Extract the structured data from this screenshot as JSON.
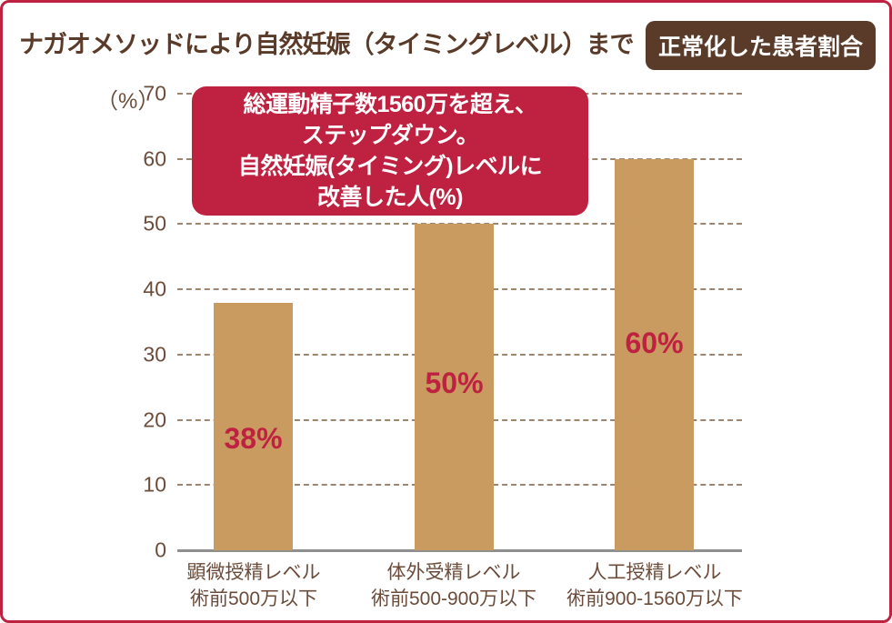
{
  "header": {
    "title": "ナガオメソッドにより自然妊娠（タイミングレベル）まで",
    "badge": "正常化した患者割合"
  },
  "annotation": {
    "lines": [
      "総運動精子数1560万を超え、",
      "ステップダウン。",
      "自然妊娠(タイミング)レベルに",
      "改善した人(%)"
    ]
  },
  "chart_data": {
    "type": "bar",
    "title": "ナガオメソッドにより自然妊娠（タイミングレベル）まで正常化した患者割合",
    "unit_label": "（%）",
    "categories": [
      [
        "顕微授精レベル",
        "術前500万以下"
      ],
      [
        "体外受精レベル",
        "術前500-900万以下"
      ],
      [
        "人工授精レベル",
        "術前900-1560万以下"
      ]
    ],
    "values": [
      38,
      50,
      60
    ],
    "value_labels": [
      "38%",
      "50%",
      "60%"
    ],
    "yticks": [
      70,
      60,
      50,
      40,
      30,
      20,
      10,
      0
    ],
    "ylim": [
      0,
      70
    ],
    "xlabel": "",
    "ylabel": "(%)",
    "grid": "horizontal-dashed",
    "legend": "none",
    "annotation": "総運動精子数1560万を超え、ステップダウン。自然妊娠(タイミング)レベルに改善した人(%)"
  },
  "colors": {
    "accent_red": "#bf2240",
    "bar_tan": "#c99b60",
    "brown_dark": "#5a3a28",
    "brown_text": "#6b4c3a",
    "grid_line": "#9c8672",
    "axis_line": "#8f8f8f"
  }
}
